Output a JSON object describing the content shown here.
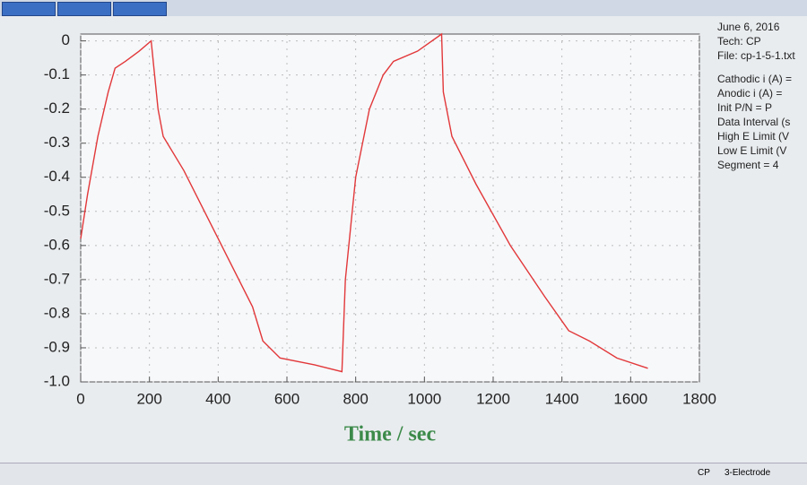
{
  "panel": [
    "June 6, 2016",
    "Tech: CP",
    "File: cp-1-5-1.txt",
    "Cathodic i (A) =",
    "Anodic i (A) =",
    "Init P/N = P",
    "Data Interval (s",
    "High E Limit (V",
    "Low E Limit (V",
    "Segment = 4"
  ],
  "status": [
    "CP",
    "3-Electrode"
  ],
  "chart_data": {
    "type": "line",
    "xlabel": "Time / sec",
    "color": "#e2383a",
    "grid": true,
    "x": [
      0,
      20,
      50,
      80,
      100,
      130,
      170,
      205,
      210,
      225,
      240,
      300,
      400,
      500,
      530,
      580,
      680,
      760,
      770,
      800,
      840,
      880,
      910,
      980,
      1050,
      1055,
      1080,
      1150,
      1250,
      1350,
      1420,
      1480,
      1560,
      1650
    ],
    "values": [
      -0.58,
      -0.45,
      -0.28,
      -0.15,
      -0.08,
      -0.06,
      -0.03,
      0.0,
      -0.05,
      -0.2,
      -0.28,
      -0.38,
      -0.58,
      -0.78,
      -0.88,
      -0.93,
      -0.95,
      -0.97,
      -0.7,
      -0.4,
      -0.2,
      -0.1,
      -0.06,
      -0.03,
      0.02,
      -0.15,
      -0.28,
      -0.42,
      -0.6,
      -0.75,
      -0.85,
      -0.88,
      -0.93,
      -0.96
    ],
    "xlim": [
      0,
      1800
    ],
    "ylim": [
      -1.0,
      0.02
    ],
    "xticks": [
      0,
      200,
      400,
      600,
      800,
      1000,
      1200,
      1400,
      1600,
      1800
    ],
    "yticks": [
      0,
      -0.1,
      -0.2,
      -0.3,
      -0.4,
      -0.5,
      -0.6,
      -0.7,
      -0.8,
      -0.9,
      {
        "value": -1,
        "label": "-1.0"
      }
    ]
  }
}
